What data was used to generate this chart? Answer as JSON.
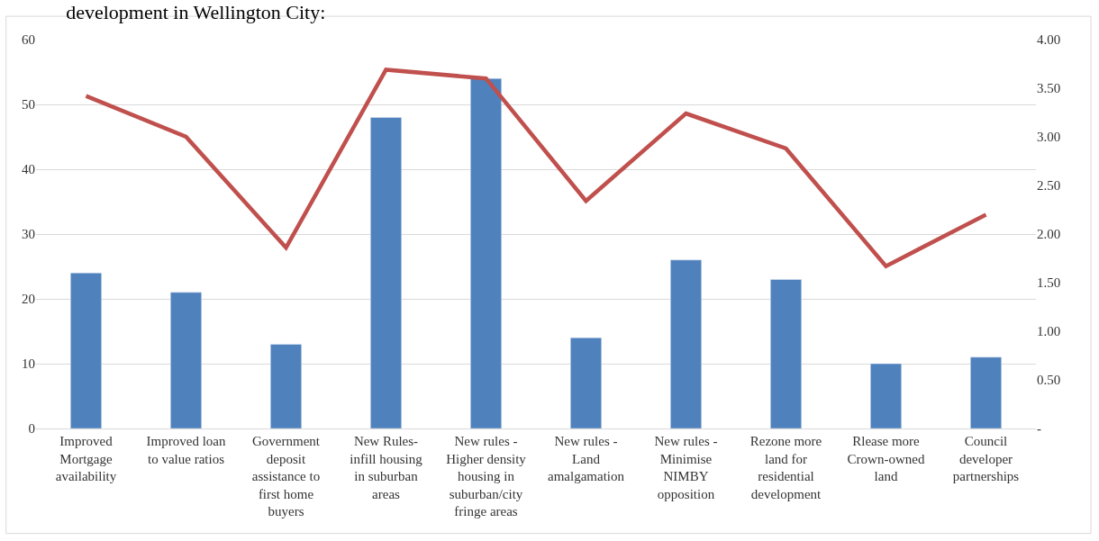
{
  "chart_data": {
    "type": "bar",
    "title": "development in Wellington City:",
    "categories": [
      "Improved\nMortgage\navailability",
      "Improved loan\nto value ratios",
      "Government\ndeposit\nassistance to\nfirst home\nbuyers",
      "New Rules-\ninfill housing\nin suburban\nareas",
      "New rules -\nHigher density\nhousing in\nsuburban/city\nfringe areas",
      "New rules -\nLand\namalgamation",
      "New rules -\nMinimise\nNIMBY\nopposition",
      "Rezone more\nland for\nresidential\ndevelopment",
      "Rlease more\nCrown-owned\nland",
      "Council\ndeveloper\npartnerships"
    ],
    "series": [
      {
        "color": "#4f81bd",
        "values": [
          24,
          21,
          13,
          48,
          54,
          14,
          26,
          23,
          10,
          11
        ]
      },
      {
        "type": "line",
        "axis": "y2",
        "color": "#c0504d",
        "values": [
          3.42,
          3.0,
          1.86,
          3.69,
          3.6,
          2.34,
          3.24,
          2.88,
          1.67,
          2.2
        ]
      }
    ],
    "ylim": [
      0,
      60
    ],
    "yticks": [
      0,
      10,
      20,
      30,
      40,
      50,
      60
    ],
    "y2lim": [
      0,
      4
    ],
    "y2ticks": [
      {
        "value": 0,
        "label": "-"
      },
      {
        "value": 0.5,
        "label": "0.50"
      },
      {
        "value": 1,
        "label": "1.00"
      },
      {
        "value": 1.5,
        "label": "1.50"
      },
      {
        "value": 2,
        "label": "2.00"
      },
      {
        "value": 2.5,
        "label": "2.50"
      },
      {
        "value": 3,
        "label": "3.00"
      },
      {
        "value": 3.5,
        "label": "3.50"
      },
      {
        "value": 4,
        "label": "4.00"
      }
    ],
    "grid": "y",
    "marker": "none",
    "line_style": "solid"
  }
}
